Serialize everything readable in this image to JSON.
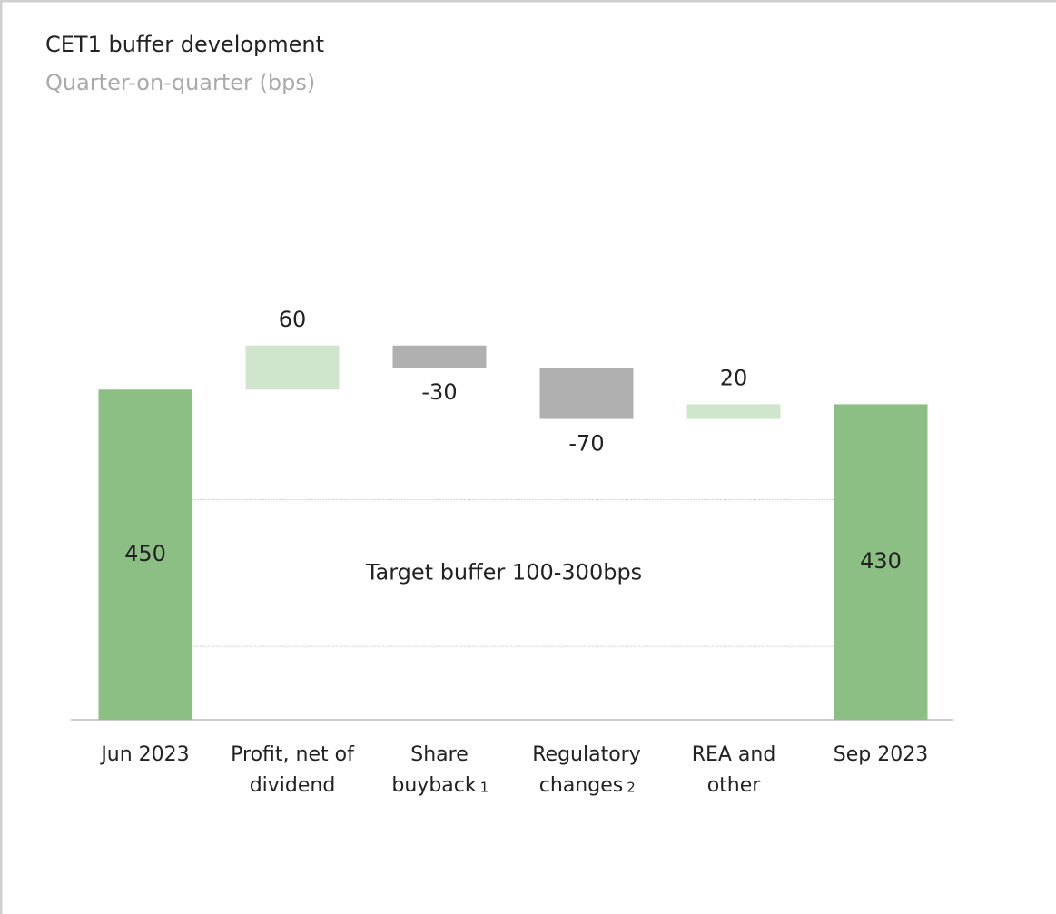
{
  "chart_data": {
    "type": "waterfall",
    "title": "CET1 buffer development",
    "subtitle": "Quarter-on-quarter (bps)",
    "categories": [
      [
        "Jun 2023"
      ],
      [
        "Profit, net of",
        "dividend"
      ],
      [
        "Share",
        "buyback"
      ],
      [
        "Regulatory",
        "changes"
      ],
      [
        "REA and",
        "other"
      ],
      [
        "Sep 2023"
      ]
    ],
    "footnotes": [
      null,
      null,
      "1",
      "2",
      null,
      null
    ],
    "values": [
      450,
      60,
      -30,
      -70,
      20,
      430
    ],
    "measure": [
      "absolute",
      "relative",
      "relative",
      "relative",
      "relative",
      "absolute"
    ],
    "colors": {
      "total": "#8bbf83",
      "increase": "#d0e6cc",
      "decrease": "#b0b0b0"
    },
    "ylim": [
      0,
      600
    ],
    "target_band": [
      100,
      300
    ],
    "annotation": "Target buffer 100-300bps"
  }
}
